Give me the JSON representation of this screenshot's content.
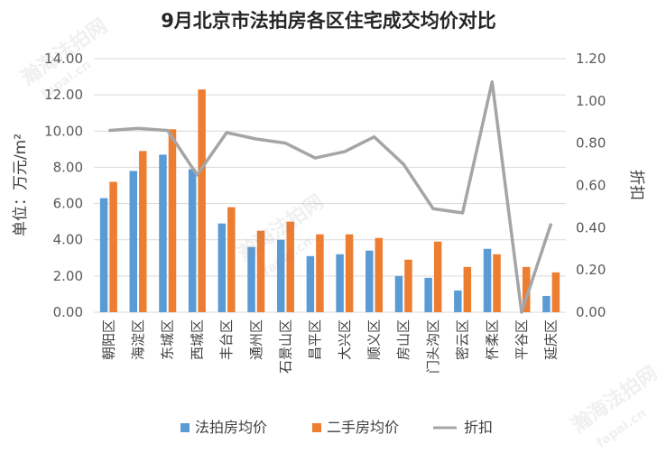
{
  "chart_data": {
    "type": "bar",
    "title": "9月北京市法拍房各区住宅成交均价对比",
    "ylabel": "单位：万元/m²",
    "y2label": "折扣",
    "ylim": [
      0,
      14
    ],
    "y2lim": [
      0,
      1.2
    ],
    "yticks": [
      "0.00",
      "2.00",
      "4.00",
      "6.00",
      "8.00",
      "10.00",
      "12.00",
      "14.00"
    ],
    "y2ticks": [
      "0.00",
      "0.20",
      "0.40",
      "0.60",
      "0.80",
      "1.00",
      "1.20"
    ],
    "categories": [
      "朝阳区",
      "海淀区",
      "东城区",
      "西城区",
      "丰台区",
      "通州区",
      "石景山区",
      "昌平区",
      "大兴区",
      "顺义区",
      "房山区",
      "门头沟区",
      "密云区",
      "怀柔区",
      "平谷区",
      "延庆区"
    ],
    "series": [
      {
        "name": "法拍房均价",
        "type": "bar",
        "axis": "left",
        "color": "#5b9bd5",
        "values": [
          6.3,
          7.8,
          8.7,
          7.9,
          4.9,
          3.6,
          4.0,
          3.1,
          3.2,
          3.4,
          2.0,
          1.9,
          1.2,
          3.5,
          0.0,
          0.9
        ]
      },
      {
        "name": "二手房均价",
        "type": "bar",
        "axis": "left",
        "color": "#ed7d31",
        "values": [
          7.2,
          8.9,
          10.1,
          12.3,
          5.8,
          4.5,
          5.0,
          4.3,
          4.3,
          4.1,
          2.9,
          3.9,
          2.5,
          3.2,
          2.5,
          2.2
        ]
      },
      {
        "name": "折扣",
        "type": "line",
        "axis": "right",
        "color": "#a5a5a5",
        "values": [
          0.86,
          0.87,
          0.86,
          0.65,
          0.85,
          0.82,
          0.8,
          0.73,
          0.76,
          0.83,
          0.7,
          0.49,
          0.47,
          1.09,
          0.0,
          0.42
        ]
      }
    ],
    "legend_position": "bottom",
    "grid": true
  },
  "watermarks": [
    "瀚海法拍网",
    "fapai.cn"
  ]
}
